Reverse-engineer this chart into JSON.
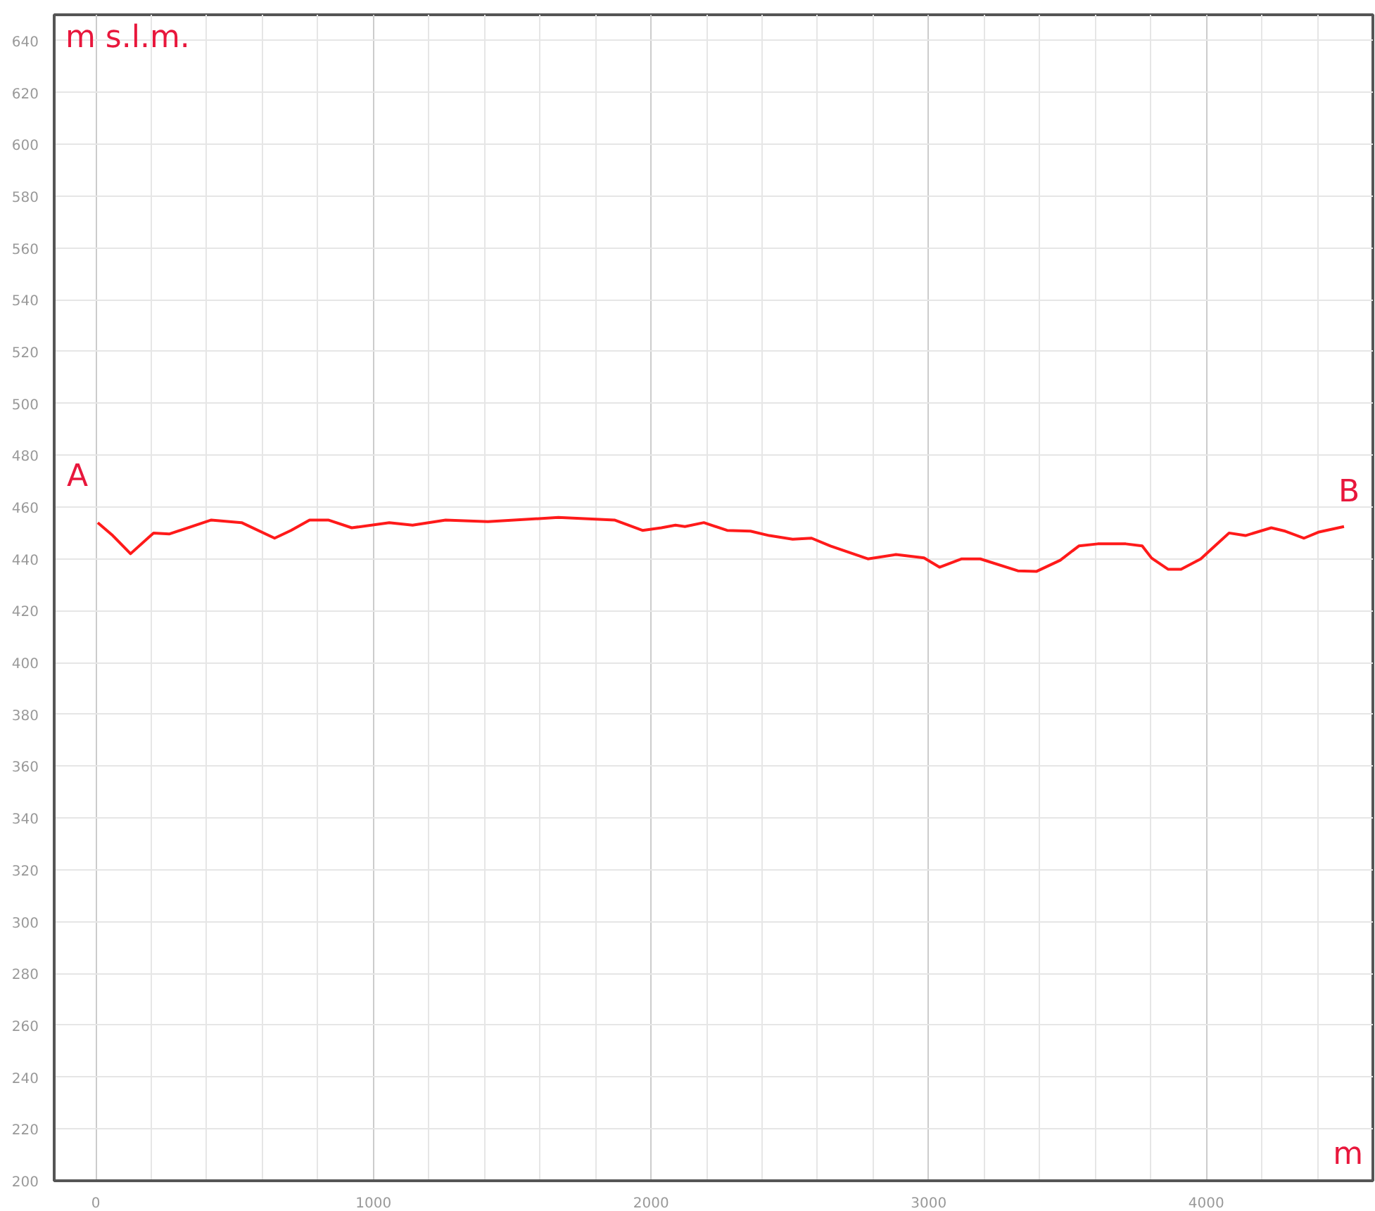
{
  "chart_data": {
    "type": "line",
    "xlabel": "m",
    "ylabel": "m s.l.m.",
    "annotations": [
      "A",
      "B"
    ],
    "x": [
      7,
      61,
      125,
      208,
      264,
      416,
      525,
      644,
      703,
      770,
      837,
      922,
      1057,
      1141,
      1260,
      1412,
      1666,
      1868,
      1969,
      2037,
      2088,
      2122,
      2190,
      2274,
      2358,
      2426,
      2510,
      2578,
      2646,
      2781,
      2882,
      2983,
      3039,
      3119,
      3186,
      3321,
      3389,
      3474,
      3541,
      3609,
      3710,
      3769,
      3803,
      3862,
      3909,
      3980,
      4031,
      4082,
      4141,
      4234,
      4284,
      4352,
      4403,
      4496
    ],
    "series": [
      {
        "color": "#ff1a1a",
        "values": [
          454,
          449,
          442,
          450,
          449.6,
          455,
          454,
          448,
          451,
          455,
          455,
          452,
          454,
          453,
          455,
          454.4,
          456,
          455,
          451,
          452,
          453,
          452.5,
          454,
          451,
          450.7,
          449,
          447.6,
          448,
          445,
          440,
          441.7,
          440.4,
          436.8,
          440,
          440,
          435.4,
          435.2,
          439.5,
          445,
          445.8,
          445.8,
          445,
          440.3,
          436,
          436,
          440,
          445,
          450,
          449,
          452,
          450.7,
          448,
          450.3,
          452.5
        ]
      }
    ],
    "xlim": [
      -150,
      4600
    ],
    "ylim": [
      200,
      650
    ],
    "xticks": [
      0,
      1000,
      2000,
      3000,
      4000
    ],
    "yticks": [
      200,
      220,
      240,
      260,
      280,
      300,
      320,
      340,
      360,
      380,
      400,
      420,
      440,
      460,
      480,
      500,
      520,
      540,
      560,
      580,
      600,
      620,
      640
    ],
    "grid": true,
    "marker": "none",
    "line_style": "solid"
  }
}
